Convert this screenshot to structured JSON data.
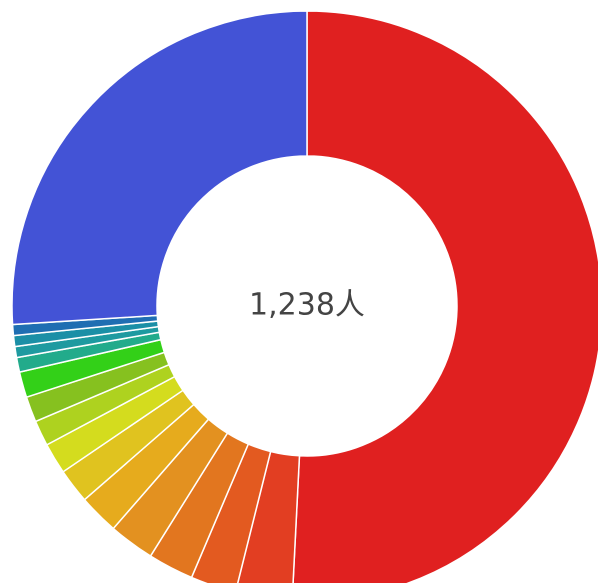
{
  "chart_data": {
    "type": "pie",
    "donut": true,
    "center_label": "1,238人",
    "values": [
      50.8,
      3.1,
      2.5,
      2.5,
      2.5,
      2.2,
      1.9,
      1.7,
      1.4,
      1.4,
      1.4,
      0.8,
      0.6,
      0.6,
      0.6,
      26.0
    ],
    "colors": [
      "#e02020",
      "#e23e22",
      "#e35a20",
      "#e2761f",
      "#e39120",
      "#e6ab1d",
      "#e0c31f",
      "#d4dc1e",
      "#aed21f",
      "#86c11f",
      "#33d018",
      "#22ab8b",
      "#1e9aa0",
      "#1b8fa6",
      "#1f6eb2",
      "#4353d6"
    ]
  }
}
